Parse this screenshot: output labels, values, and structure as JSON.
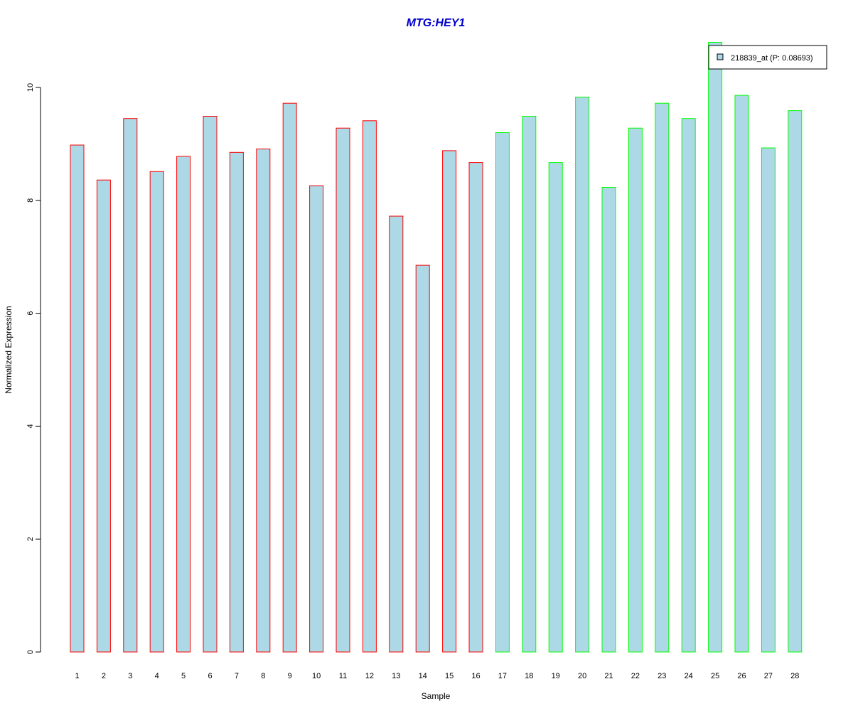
{
  "chart_data": {
    "type": "bar",
    "title": "MTG:HEY1",
    "xlabel": "Sample",
    "ylabel": "Normalized Expression",
    "ylim": [
      0,
      11
    ],
    "yticks": [
      0,
      2,
      4,
      6,
      8,
      10
    ],
    "grid": false,
    "legend": {
      "position": "top-right",
      "label": "218839_at (P: 0.08693)"
    },
    "categories": [
      "1",
      "2",
      "3",
      "4",
      "5",
      "6",
      "7",
      "8",
      "9",
      "10",
      "11",
      "12",
      "13",
      "14",
      "15",
      "16",
      "17",
      "18",
      "19",
      "20",
      "21",
      "22",
      "23",
      "24",
      "25",
      "26",
      "27",
      "28"
    ],
    "values": [
      8.98,
      8.36,
      9.45,
      8.51,
      8.78,
      9.49,
      8.85,
      8.91,
      9.72,
      8.26,
      9.28,
      9.41,
      7.72,
      6.85,
      8.88,
      8.67,
      9.2,
      9.49,
      8.67,
      9.83,
      8.23,
      9.28,
      9.72,
      9.45,
      10.8,
      9.86,
      8.93,
      9.59
    ],
    "groups": [
      1,
      1,
      1,
      1,
      1,
      1,
      1,
      1,
      1,
      1,
      1,
      1,
      1,
      1,
      1,
      1,
      2,
      2,
      2,
      2,
      2,
      2,
      2,
      2,
      2,
      2,
      2,
      2
    ]
  },
  "colors": {
    "bar_fill": "#add8e6",
    "group1_border": "#ff0000",
    "group2_border": "#00ff00",
    "title": "#0000cc",
    "axis": "#000000"
  }
}
